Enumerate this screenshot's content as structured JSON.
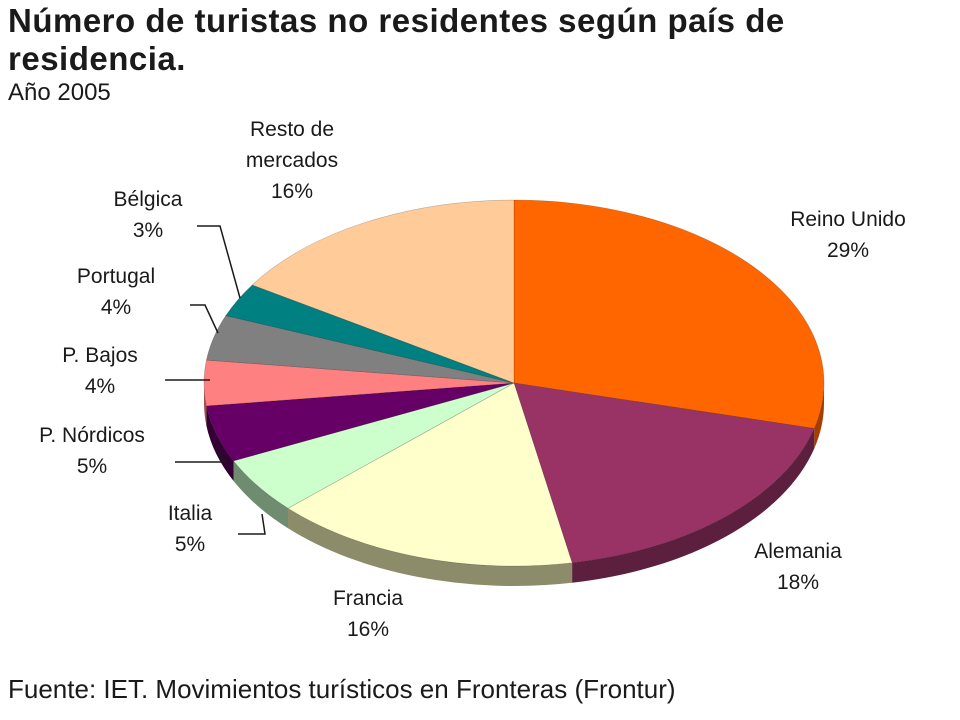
{
  "title": "Número de turistas no residentes según país de residencia.",
  "subtitle": "Año 2005",
  "source": "Fuente: IET. Movimientos turísticos en Fronteras (Frontur)",
  "chart_data": {
    "type": "pie",
    "title": "Número de turistas no residentes según país de residencia.",
    "subtitle": "Año 2005",
    "three_d": true,
    "slices": [
      {
        "label": "Reino Unido",
        "value": 29,
        "value_label": "29%",
        "color": "#ff6600",
        "side_color": "#a33d00"
      },
      {
        "label": "Alemania",
        "value": 18,
        "value_label": "18%",
        "color": "#993366",
        "side_color": "#5c1f3d"
      },
      {
        "label": "Francia",
        "value": 16,
        "value_label": "16%",
        "color": "#ffffcc",
        "side_color": "#8c8c6a"
      },
      {
        "label": "Italia",
        "value": 5,
        "value_label": "5%",
        "color": "#ccffcc",
        "side_color": "#708c70"
      },
      {
        "label": "P. Nórdicos",
        "value": 5,
        "value_label": "5%",
        "color": "#660066",
        "side_color": "#330033"
      },
      {
        "label": "P. Bajos",
        "value": 4,
        "value_label": "4%",
        "color": "#ff8080",
        "side_color": "#a34f4f"
      },
      {
        "label": "Portugal",
        "value": 4,
        "value_label": "4%",
        "color": "#808080",
        "side_color": "#4d4d4d"
      },
      {
        "label": "Bélgica",
        "value": 3,
        "value_label": "3%",
        "color": "#008080",
        "side_color": "#004d4d"
      },
      {
        "label": "Resto de mercados",
        "value": 16,
        "value_label": "16%",
        "color": "#ffcc99",
        "side_color": "#a3825f"
      }
    ]
  }
}
